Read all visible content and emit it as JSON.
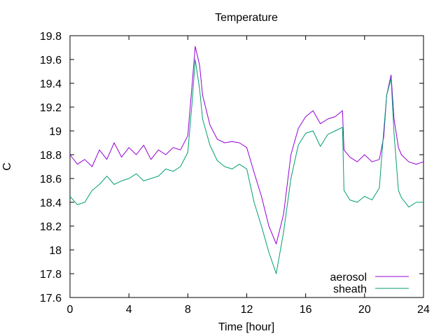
{
  "chart_data": {
    "type": "line",
    "title": "Temperature",
    "xlabel": "Time [hour]",
    "ylabel": "C",
    "xlim": [
      0,
      24
    ],
    "ylim": [
      17.6,
      19.8
    ],
    "xticks": [
      "0",
      "4",
      "8",
      "12",
      "16",
      "20",
      "24"
    ],
    "yticks": [
      "17.6",
      "17.8",
      "18",
      "18.2",
      "18.4",
      "18.6",
      "18.8",
      "19",
      "19.2",
      "19.4",
      "19.6",
      "19.8"
    ],
    "grid": false,
    "legend_position": "bottom-right",
    "series": [
      {
        "name": "aerosol",
        "color": "#9400d3",
        "x": [
          0.0,
          0.5,
          1.0,
          1.5,
          2.0,
          2.5,
          3.0,
          3.5,
          4.0,
          4.5,
          5.0,
          5.5,
          6.0,
          6.5,
          7.0,
          7.5,
          8.0,
          8.3,
          8.5,
          8.8,
          9.0,
          9.5,
          10.0,
          10.5,
          11.0,
          11.5,
          12.0,
          12.5,
          13.0,
          13.5,
          14.0,
          14.5,
          15.0,
          15.5,
          16.0,
          16.5,
          17.0,
          17.5,
          18.0,
          18.5,
          18.6,
          19.0,
          19.5,
          20.0,
          20.5,
          21.0,
          21.3,
          21.5,
          21.8,
          22.0,
          22.3,
          22.5,
          23.0,
          23.5,
          24.0
        ],
        "y": [
          18.8,
          18.72,
          18.76,
          18.7,
          18.84,
          18.76,
          18.9,
          18.78,
          18.86,
          18.8,
          18.88,
          18.76,
          18.84,
          18.8,
          18.86,
          18.84,
          18.96,
          19.4,
          19.71,
          19.55,
          19.3,
          19.05,
          18.93,
          18.9,
          18.91,
          18.9,
          18.86,
          18.65,
          18.45,
          18.2,
          18.05,
          18.3,
          18.8,
          19.02,
          19.12,
          19.17,
          19.06,
          19.1,
          19.12,
          19.17,
          18.84,
          18.78,
          18.74,
          18.8,
          18.74,
          18.76,
          18.95,
          19.3,
          19.47,
          19.1,
          18.86,
          18.8,
          18.74,
          18.72,
          18.74
        ]
      },
      {
        "name": "sheath",
        "color": "#009e73",
        "x": [
          0.0,
          0.5,
          1.0,
          1.5,
          2.0,
          2.5,
          3.0,
          3.5,
          4.0,
          4.5,
          5.0,
          5.5,
          6.0,
          6.5,
          7.0,
          7.5,
          8.0,
          8.3,
          8.5,
          8.8,
          9.0,
          9.5,
          10.0,
          10.5,
          11.0,
          11.5,
          12.0,
          12.5,
          13.0,
          13.5,
          14.0,
          14.5,
          15.0,
          15.5,
          16.0,
          16.5,
          17.0,
          17.5,
          18.0,
          18.5,
          18.6,
          19.0,
          19.5,
          20.0,
          20.5,
          21.0,
          21.3,
          21.5,
          21.8,
          22.0,
          22.3,
          22.5,
          23.0,
          23.5,
          24.0
        ],
        "y": [
          18.45,
          18.38,
          18.4,
          18.5,
          18.55,
          18.62,
          18.55,
          18.58,
          18.6,
          18.64,
          18.58,
          18.6,
          18.62,
          18.68,
          18.66,
          18.7,
          18.82,
          19.25,
          19.6,
          19.35,
          19.1,
          18.88,
          18.75,
          18.7,
          18.68,
          18.72,
          18.68,
          18.4,
          18.2,
          17.98,
          17.8,
          18.15,
          18.6,
          18.88,
          18.98,
          19.0,
          18.87,
          18.97,
          19.0,
          19.03,
          18.5,
          18.42,
          18.4,
          18.45,
          18.42,
          18.52,
          19.0,
          19.3,
          19.44,
          18.98,
          18.5,
          18.44,
          18.36,
          18.4,
          18.4
        ]
      }
    ]
  }
}
